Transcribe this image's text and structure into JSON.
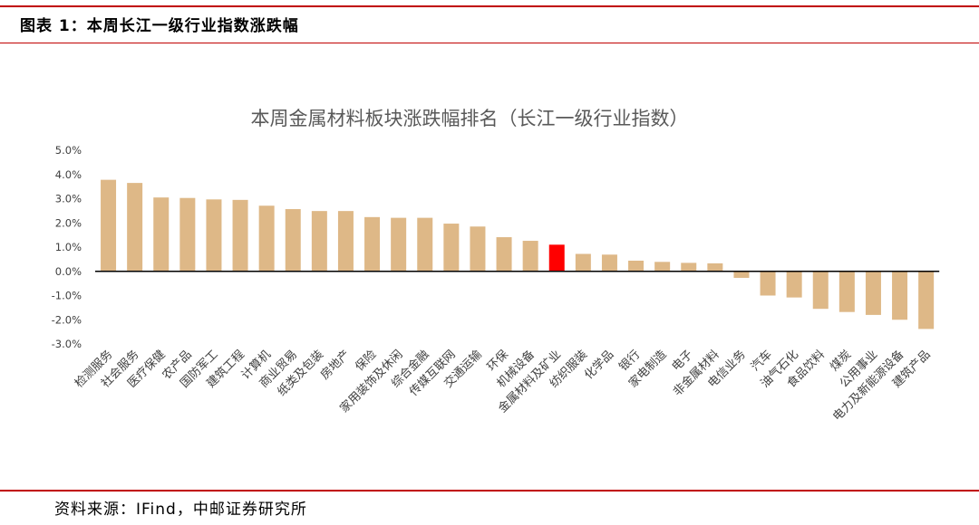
{
  "header": {
    "figure_title": "图表 1：本周长江一级行业指数涨跌幅"
  },
  "footer": {
    "source": "资料来源：IFind，中邮证券研究所"
  },
  "colors": {
    "accent_rule": "#c00000",
    "bar_default": "#deb887",
    "bar_highlight": "#ff0000",
    "axis": "#000000"
  },
  "chart_data": {
    "type": "bar",
    "title": "本周金属材料板块涨跌幅排名（长江一级行业指数）",
    "xlabel": "",
    "ylabel": "",
    "ylim": [
      -3.0,
      5.0
    ],
    "y_ticks": [
      "5.0%",
      "4.0%",
      "3.0%",
      "2.0%",
      "1.0%",
      "0.0%",
      "-1.0%",
      "-2.0%",
      "-3.0%"
    ],
    "y_tick_values": [
      5,
      4,
      3,
      2,
      1,
      0,
      -1,
      -2,
      -3
    ],
    "grid": false,
    "legend": "none",
    "highlight": "金属材料及矿业",
    "categories": [
      "检测服务",
      "社会服务",
      "医疗保健",
      "农产品",
      "国防军工",
      "建筑工程",
      "计算机",
      "商业贸易",
      "纸类及包装",
      "房地产",
      "保险",
      "家用装饰及休闲",
      "综合金融",
      "传媒互联网",
      "交通运输",
      "环保",
      "机械设备",
      "金属材料及矿业",
      "纺织服装",
      "化学品",
      "银行",
      "家电制造",
      "电子",
      "非金属材料",
      "电信业务",
      "汽车",
      "油气石化",
      "食品饮料",
      "煤炭",
      "公用事业",
      "电力及新能源设备",
      "建筑产品"
    ],
    "values": [
      3.78,
      3.65,
      3.05,
      3.03,
      2.97,
      2.95,
      2.71,
      2.57,
      2.49,
      2.49,
      2.24,
      2.21,
      2.21,
      1.97,
      1.85,
      1.41,
      1.26,
      1.1,
      0.72,
      0.69,
      0.44,
      0.39,
      0.35,
      0.33,
      -0.27,
      -1.0,
      -1.08,
      -1.55,
      -1.68,
      -1.8,
      -2.0,
      -2.38
    ]
  }
}
